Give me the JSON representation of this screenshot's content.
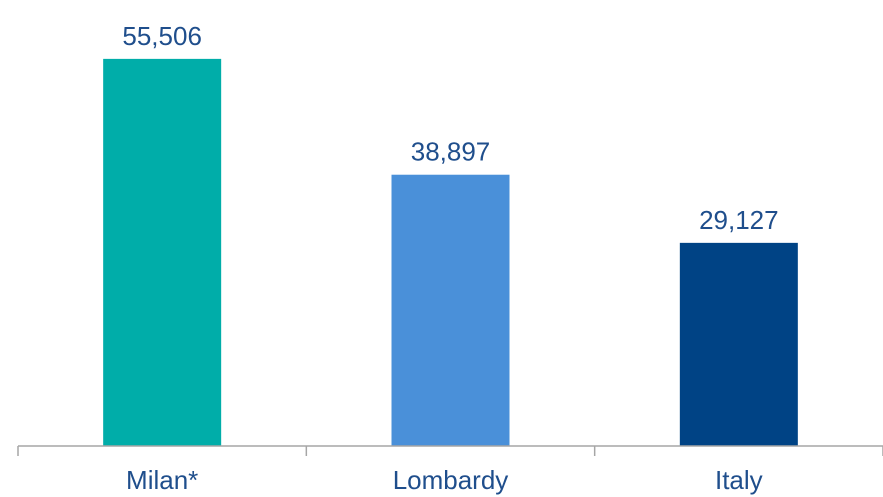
{
  "chart_data": {
    "type": "bar",
    "categories": [
      "Milan*",
      "Lombardy",
      "Italy"
    ],
    "values": [
      55506,
      38897,
      29127
    ],
    "value_labels": [
      "55,506",
      "38,897",
      "29,127"
    ],
    "colors": [
      "#00ada9",
      "#4a90d9",
      "#004385"
    ],
    "label_color": "#1f4e8c",
    "axis_color": "#a6a6a6",
    "ylim": [
      0,
      58500
    ],
    "grid": false,
    "legend": "none"
  }
}
